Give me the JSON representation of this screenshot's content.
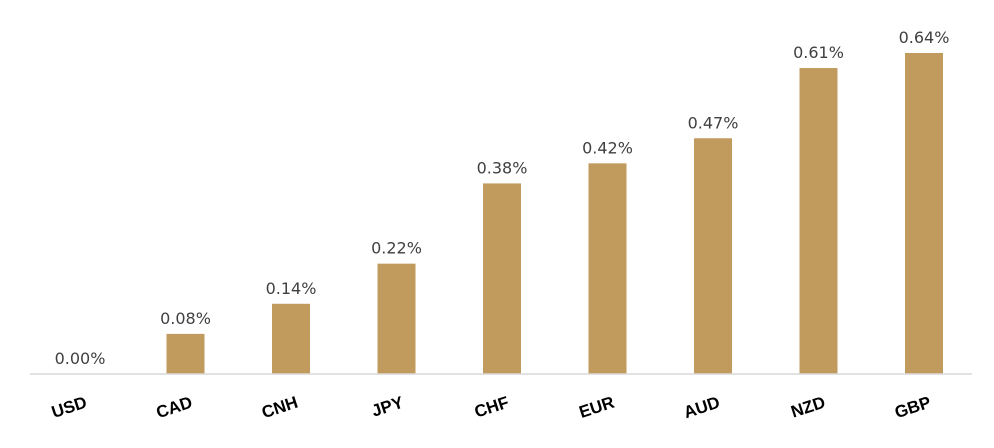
{
  "chart_data": {
    "type": "bar",
    "title": "",
    "xlabel": "",
    "ylabel": "",
    "categories": [
      "USD",
      "CAD",
      "CNH",
      "JPY",
      "CHF",
      "EUR",
      "AUD",
      "NZD",
      "GBP"
    ],
    "values": [
      0.0,
      0.08,
      0.14,
      0.22,
      0.38,
      0.42,
      0.47,
      0.61,
      0.64
    ],
    "data_labels": [
      "0.00%",
      "0.08%",
      "0.14%",
      "0.22%",
      "0.38%",
      "0.42%",
      "0.47%",
      "0.61%",
      "0.64%"
    ],
    "ylim": [
      0,
      0.64
    ],
    "grid": false,
    "legend": "none",
    "x_tick_rotation_deg": -18,
    "colors": {
      "bar": "#C19A5E",
      "axis": "#D9D9D9",
      "data_label": "#404040",
      "tick_label": "#000000"
    }
  }
}
